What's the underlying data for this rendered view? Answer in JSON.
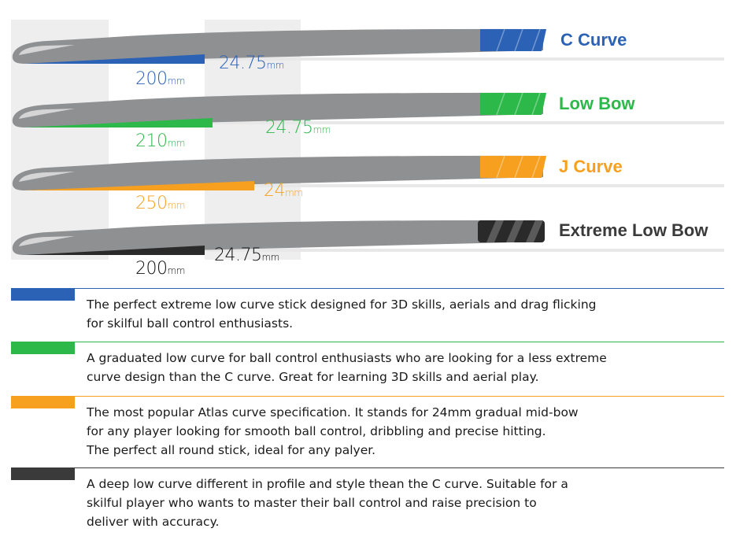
{
  "colors": {
    "blue": "#2b62b5",
    "green": "#2db84a",
    "orange": "#f7a01f",
    "black": "#2a2a2a",
    "stick_gray": "#8f9092",
    "panel_gray": "#eeeeee"
  },
  "sticks": [
    {
      "name": "C Curve",
      "color": "#2b62b5",
      "length": {
        "value": "200",
        "unit": "mm"
      },
      "bow": {
        "value": "24.75",
        "unit": "mm"
      }
    },
    {
      "name": "Low Bow",
      "color": "#2db84a",
      "length": {
        "value": "210",
        "unit": "mm"
      },
      "bow": {
        "value": "24.75",
        "unit": "mm"
      }
    },
    {
      "name": "J Curve",
      "color": "#f7a01f",
      "length": {
        "value": "250",
        "unit": "mm"
      },
      "bow": {
        "value": "24",
        "unit": "mm"
      }
    },
    {
      "name": "Extreme Low Bow",
      "color": "#2a2a2a",
      "length": {
        "value": "200",
        "unit": "mm"
      },
      "bow": {
        "value": "24.75",
        "unit": "mm"
      }
    }
  ],
  "descriptions": [
    {
      "color": "#2b62b5",
      "text": "The perfect extreme low curve stick designed for 3D skills, aerials and drag flicking\nfor skilful ball control enthusiasts."
    },
    {
      "color": "#2db84a",
      "text": "A graduated low curve for ball control enthusiasts who are looking for a less extreme\ncurve design than the C curve. Great for learning 3D skills and aerial play."
    },
    {
      "color": "#f7a01f",
      "text": "The most popular Atlas curve specification. It stands for 24mm gradual mid-bow\nfor any player looking for smooth ball control, dribbling and precise hitting.\nThe perfect all round stick, ideal for any palyer."
    },
    {
      "color": "#3a3a3a",
      "text": "A deep low curve different in profile and style thean the C curve. Suitable for a\nskilful player who wants to master their ball control and raise precision to\ndeliver with accuracy."
    }
  ]
}
